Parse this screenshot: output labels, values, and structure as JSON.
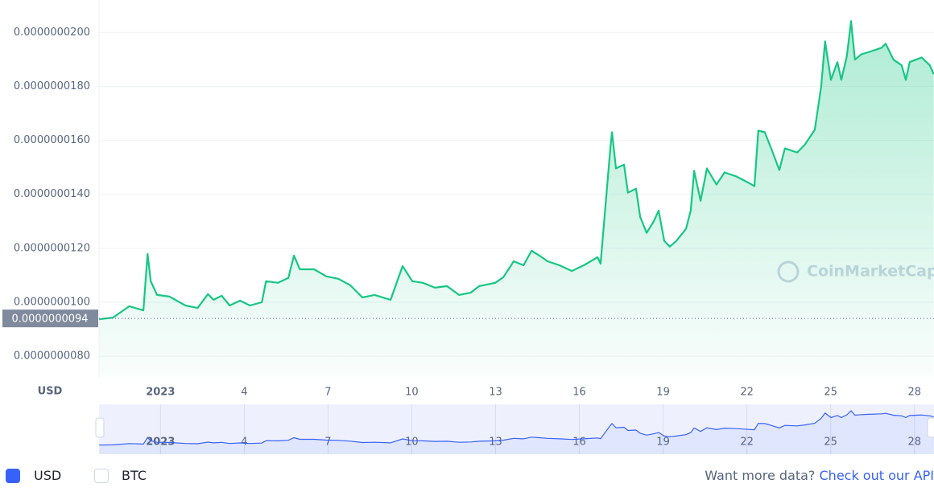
{
  "chart_data": {
    "type": "area",
    "y_label": "USD",
    "color": "#16c784",
    "navigator_color": "#3861fb",
    "watermark": "CoinMarketCap",
    "current_price": {
      "value": 9.4e-09,
      "label": "0.0000000094"
    },
    "xlim": [
      -1.2,
      28.7
    ],
    "xticks": [
      {
        "value": 1,
        "label": "2023"
      },
      4,
      7,
      10,
      13,
      16,
      19,
      22,
      25,
      28
    ],
    "ylim": [
      7.2e-09,
      2.12e-08
    ],
    "yticks": [
      {
        "value": 8e-09,
        "label": "0.0000000080"
      },
      {
        "value": 1e-08,
        "label": "0.0000000100"
      },
      {
        "value": 1.2e-08,
        "label": "0.0000000120"
      },
      {
        "value": 1.4e-08,
        "label": "0.0000000140"
      },
      {
        "value": 1.6e-08,
        "label": "0.0000000160"
      },
      {
        "value": 1.8e-08,
        "label": "0.0000000180"
      },
      {
        "value": 2e-08,
        "label": "0.0000000200"
      }
    ],
    "grid": true,
    "x": [
      -1.19,
      -0.7,
      -0.12,
      0.39,
      0.54,
      0.65,
      0.88,
      1.32,
      1.89,
      2.33,
      2.7,
      2.9,
      3.19,
      3.48,
      3.85,
      4.2,
      4.63,
      4.78,
      5.21,
      5.58,
      5.78,
      5.99,
      6.5,
      6.94,
      7.37,
      7.8,
      8.23,
      8.67,
      9.24,
      9.67,
      10.02,
      10.39,
      10.83,
      11.26,
      11.69,
      12.12,
      12.41,
      12.99,
      13.28,
      13.65,
      14.0,
      14.29,
      14.57,
      14.86,
      15.29,
      15.73,
      16.16,
      16.65,
      16.76,
      16.94,
      17.11,
      17.17,
      17.31,
      17.6,
      17.74,
      18.03,
      18.18,
      18.41,
      18.67,
      18.84,
      19.04,
      19.24,
      19.47,
      19.82,
      19.99,
      20.11,
      20.34,
      20.57,
      20.91,
      21.2,
      21.63,
      22.07,
      22.27,
      22.41,
      22.64,
      22.87,
      23.16,
      23.36,
      23.8,
      24.08,
      24.43,
      24.66,
      24.8,
      25.01,
      25.24,
      25.38,
      25.58,
      25.73,
      25.87,
      26.1,
      26.39,
      26.82,
      26.97,
      27.25,
      27.54,
      27.69,
      27.83,
      28.26,
      28.55,
      28.69
    ],
    "values": [
      9.37e-09,
      9.43e-09,
      9.85e-09,
      9.7e-09,
      1.179e-08,
      1.078e-08,
      1.027e-08,
      1.021e-08,
      9.88e-09,
      9.79e-09,
      1.03e-08,
      1.009e-08,
      1.024e-08,
      9.88e-09,
      1.006e-08,
      9.88e-09,
      1e-08,
      1.078e-08,
      1.072e-08,
      1.09e-08,
      1.173e-08,
      1.122e-08,
      1.122e-08,
      1.096e-08,
      1.087e-08,
      1.063e-08,
      1.018e-08,
      1.027e-08,
      1.009e-08,
      1.134e-08,
      1.078e-08,
      1.072e-08,
      1.054e-08,
      1.06e-08,
      1.027e-08,
      1.036e-08,
      1.06e-08,
      1.072e-08,
      1.093e-08,
      1.152e-08,
      1.137e-08,
      1.191e-08,
      1.173e-08,
      1.152e-08,
      1.137e-08,
      1.116e-08,
      1.137e-08,
      1.167e-08,
      1.143e-08,
      1.361e-08,
      1.57e-08,
      1.63e-08,
      1.496e-08,
      1.51e-08,
      1.406e-08,
      1.421e-08,
      1.316e-08,
      1.257e-08,
      1.301e-08,
      1.34e-08,
      1.227e-08,
      1.206e-08,
      1.227e-08,
      1.272e-08,
      1.34e-08,
      1.487e-08,
      1.376e-08,
      1.496e-08,
      1.436e-08,
      1.481e-08,
      1.466e-08,
      1.442e-08,
      1.43e-08,
      1.636e-08,
      1.63e-08,
      1.57e-08,
      1.49e-08,
      1.57e-08,
      1.555e-08,
      1.585e-08,
      1.639e-08,
      1.8e-08,
      1.967e-08,
      1.824e-08,
      1.89e-08,
      1.824e-08,
      1.913e-08,
      2.042e-08,
      1.899e-08,
      1.919e-08,
      1.928e-08,
      1.943e-08,
      1.958e-08,
      1.899e-08,
      1.878e-08,
      1.824e-08,
      1.89e-08,
      1.907e-08,
      1.878e-08,
      1.845e-08
    ]
  },
  "controls": {
    "currencies": [
      {
        "label": "USD",
        "checked": true
      },
      {
        "label": "BTC",
        "checked": false
      }
    ],
    "footer_text": "Want more data?",
    "footer_link": "Check out our API"
  }
}
